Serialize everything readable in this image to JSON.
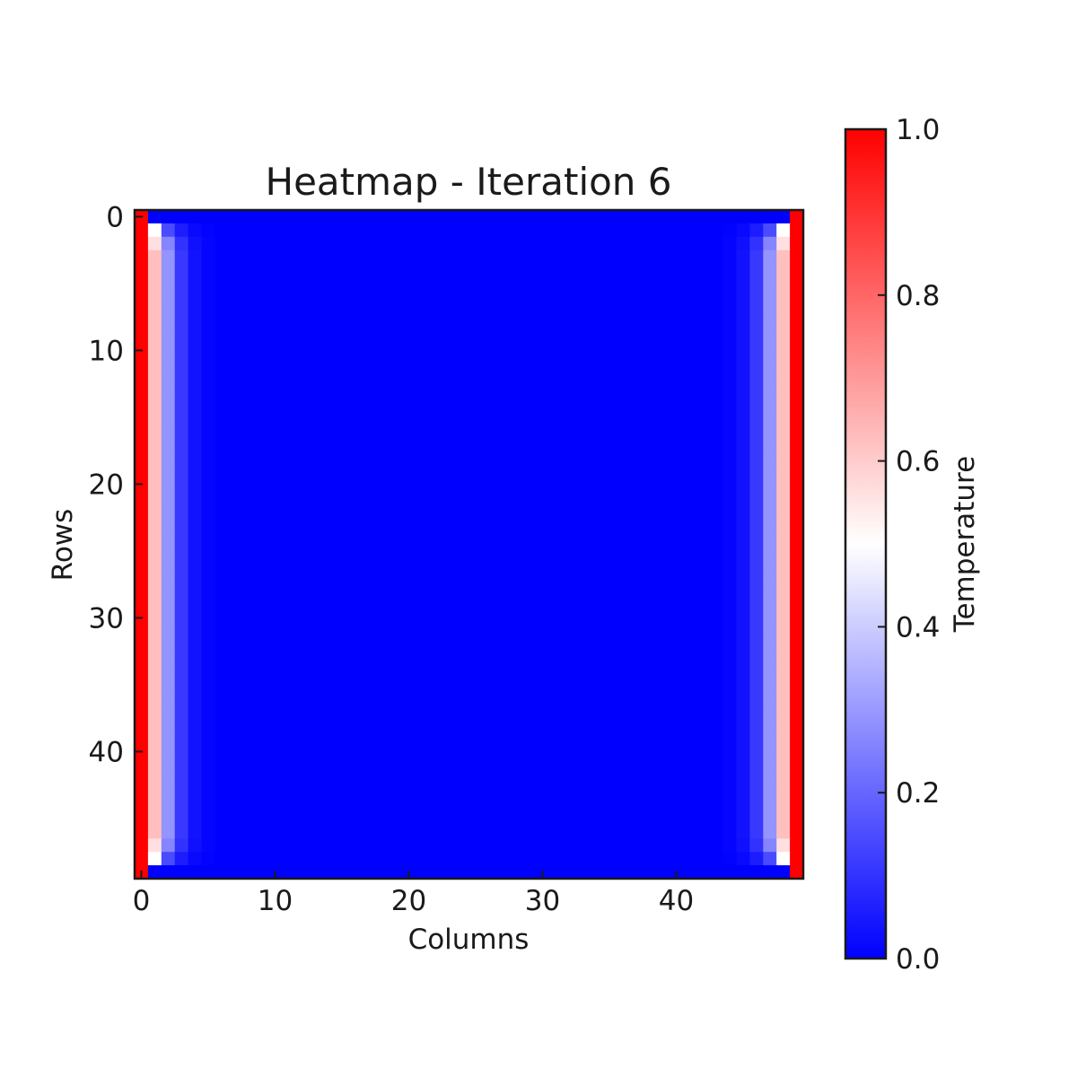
{
  "chart_data": {
    "type": "heatmap",
    "title": "Heatmap - Iteration 6",
    "xlabel": "Columns",
    "ylabel": "Rows",
    "rows": 50,
    "cols": 50,
    "x_ticks": [
      0,
      10,
      20,
      30,
      40
    ],
    "y_ticks": [
      0,
      10,
      20,
      30,
      40
    ],
    "colormap": "bwr",
    "colormap_colors": [
      "#0000ff",
      "#ffffff",
      "#ff0000"
    ],
    "vmin": 0.0,
    "vmax": 1.0,
    "colorbar": {
      "label": "Temperature",
      "ticks": [
        "0.0",
        "0.2",
        "0.4",
        "0.6",
        "0.8",
        "1.0"
      ],
      "tick_values": [
        0.0,
        0.2,
        0.4,
        0.6,
        0.8,
        1.0
      ]
    },
    "boundary": {
      "left_edge_value": 1.0,
      "right_edge_value": 1.0,
      "top_edge_value": 0.0,
      "bottom_edge_value": 0.0
    },
    "column_profile_interior": [
      {
        "col": 0,
        "value": 1.0
      },
      {
        "col": 1,
        "value": 0.625
      },
      {
        "col": 2,
        "value": 0.29
      },
      {
        "col": 3,
        "value": 0.11
      },
      {
        "col": 4,
        "value": 0.035
      },
      {
        "col": 5,
        "value": 0.008
      },
      {
        "col": 6,
        "value": 0.0
      }
    ],
    "corner_cells_white_value": 0.5
  }
}
